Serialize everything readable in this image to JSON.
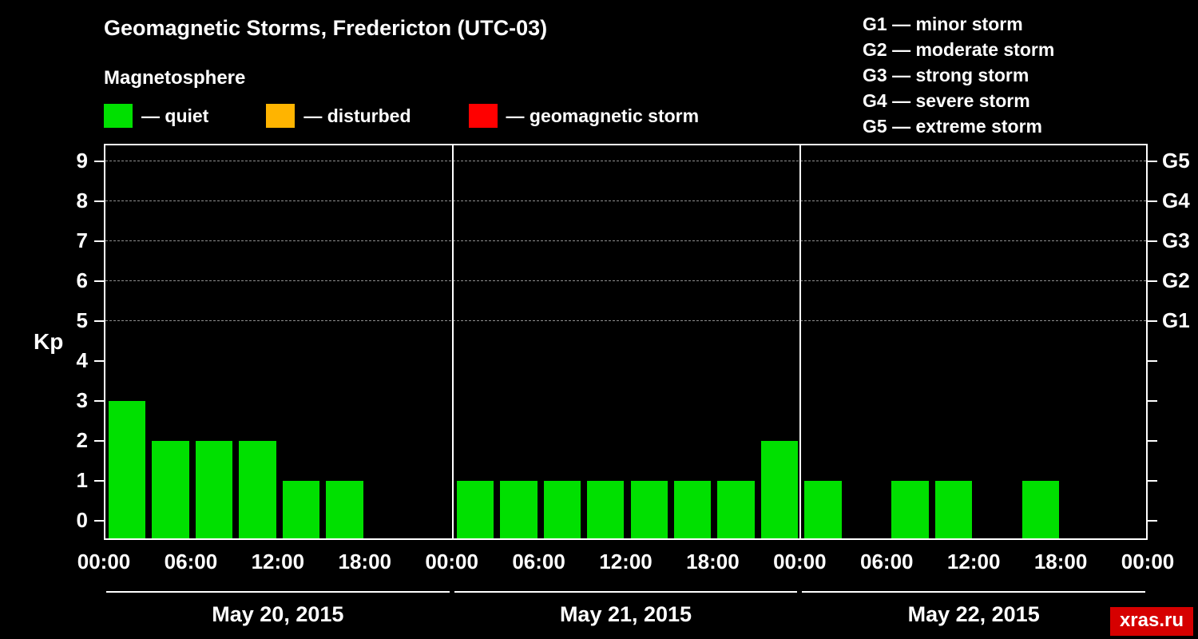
{
  "title": "Geomagnetic Storms, Fredericton (UTC-03)",
  "subtitle": "Magnetosphere",
  "ylabel": "Kp",
  "watermark": "xras.ru",
  "legend": {
    "items": [
      {
        "icon": "quiet-swatch-icon",
        "color": "#00e000",
        "label": "— quiet"
      },
      {
        "icon": "disturbed-swatch-icon",
        "color": "#ffb400",
        "label": "— disturbed"
      },
      {
        "icon": "storm-swatch-icon",
        "color": "#ff0000",
        "label": "— geomagnetic storm"
      }
    ]
  },
  "g_scale": [
    "G1 — minor storm",
    "G2 — moderate storm",
    "G3 — strong storm",
    "G4 — severe storm",
    "G5 — extreme storm"
  ],
  "chart_data": {
    "type": "bar",
    "title": "Geomagnetic Storms, Fredericton (UTC-03)",
    "ylabel": "Kp",
    "bar_color": "#00e000",
    "ylim": [
      0,
      9.5
    ],
    "yticks": [
      0,
      1,
      2,
      3,
      4,
      5,
      6,
      7,
      8,
      9
    ],
    "gridline_kp": [
      5,
      6,
      7,
      8,
      9
    ],
    "right_axis": [
      {
        "kp": 5,
        "label": "G1"
      },
      {
        "kp": 6,
        "label": "G2"
      },
      {
        "kp": 7,
        "label": "G3"
      },
      {
        "kp": 8,
        "label": "G4"
      },
      {
        "kp": 9,
        "label": "G5"
      }
    ],
    "hours_per_bar": 3,
    "x_ticks": [
      {
        "hour": 0,
        "label": "00:00"
      },
      {
        "hour": 6,
        "label": "06:00"
      },
      {
        "hour": 12,
        "label": "12:00"
      },
      {
        "hour": 18,
        "label": "18:00"
      }
    ],
    "x_axis_end_label": "00:00",
    "days": [
      {
        "date": "May 20, 2015",
        "values": [
          3,
          2,
          2,
          2,
          1,
          1,
          0,
          0
        ]
      },
      {
        "date": "May 21, 2015",
        "values": [
          1,
          1,
          1,
          1,
          1,
          1,
          1,
          2
        ]
      },
      {
        "date": "May 22, 2015",
        "values": [
          1,
          0,
          1,
          1,
          0,
          1,
          0,
          0
        ]
      }
    ]
  }
}
